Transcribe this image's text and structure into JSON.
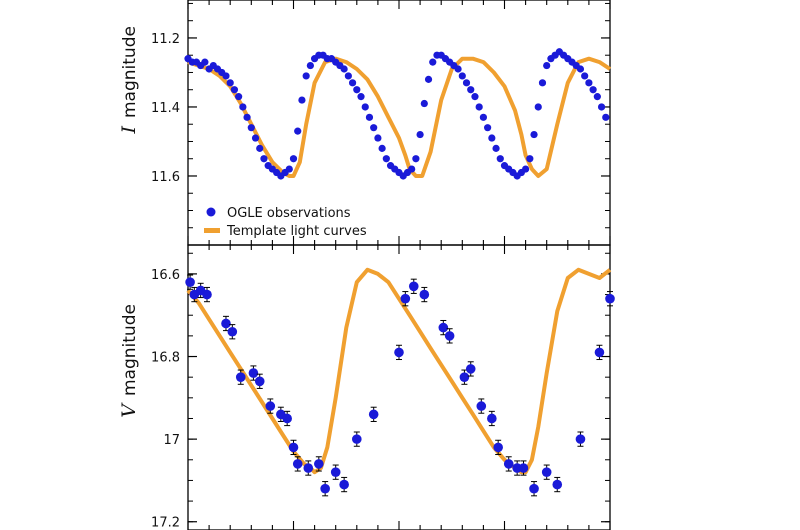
{
  "chart_data": [
    {
      "type": "scatter",
      "panel": "top",
      "ylabel_symbol": "I",
      "ylabel_word": "magnitude",
      "yticks": [
        "11.2",
        "11.4",
        "11.6"
      ],
      "ylim": [
        11.8,
        11.09
      ],
      "y_inverted": true,
      "xlim": [
        0,
        2
      ],
      "legend": {
        "placement": "bottom-left",
        "entries": [
          "OGLE observations",
          "Template light curves"
        ]
      },
      "series": [
        {
          "name": "OGLE observations",
          "color": "#1a1ad8",
          "x": [
            0.0,
            0.02,
            0.04,
            0.06,
            0.08,
            0.1,
            0.12,
            0.14,
            0.16,
            0.18,
            0.2,
            0.22,
            0.24,
            0.26,
            0.28,
            0.3,
            0.32,
            0.34,
            0.36,
            0.38,
            0.4,
            0.42,
            0.44,
            0.46,
            0.48,
            0.5,
            0.52,
            0.54,
            0.56,
            0.58,
            0.6,
            0.62,
            0.64,
            0.66,
            0.68,
            0.7,
            0.72,
            0.74,
            0.76,
            0.78,
            0.8,
            0.82,
            0.84,
            0.86,
            0.88,
            0.9,
            0.92,
            0.94,
            0.96,
            0.98,
            1.0,
            1.02,
            1.04,
            1.06,
            1.08,
            1.1,
            1.12,
            1.14,
            1.16,
            1.18,
            1.2,
            1.22,
            1.24,
            1.26,
            1.28,
            1.3,
            1.32,
            1.34,
            1.36,
            1.38,
            1.4,
            1.42,
            1.44,
            1.46,
            1.48,
            1.5,
            1.52,
            1.54,
            1.56,
            1.58,
            1.6,
            1.62,
            1.64,
            1.66,
            1.68,
            1.7,
            1.72,
            1.74,
            1.76,
            1.78,
            1.8,
            1.82,
            1.84,
            1.86,
            1.88,
            1.9,
            1.92,
            1.94,
            1.96,
            1.98
          ],
          "y": [
            11.26,
            11.27,
            11.27,
            11.28,
            11.27,
            11.29,
            11.28,
            11.29,
            11.3,
            11.31,
            11.33,
            11.35,
            11.37,
            11.4,
            11.43,
            11.46,
            11.49,
            11.52,
            11.55,
            11.57,
            11.58,
            11.59,
            11.6,
            11.59,
            11.58,
            11.55,
            11.47,
            11.38,
            11.31,
            11.28,
            11.26,
            11.25,
            11.25,
            11.26,
            11.26,
            11.27,
            11.28,
            11.29,
            11.31,
            11.33,
            11.35,
            11.37,
            11.4,
            11.43,
            11.46,
            11.49,
            11.52,
            11.55,
            11.57,
            11.58,
            11.59,
            11.6,
            11.59,
            11.58,
            11.55,
            11.48,
            11.39,
            11.32,
            11.27,
            11.25,
            11.25,
            11.26,
            11.27,
            11.28,
            11.29,
            11.31,
            11.33,
            11.35,
            11.37,
            11.4,
            11.43,
            11.46,
            11.49,
            11.52,
            11.55,
            11.57,
            11.58,
            11.59,
            11.6,
            11.59,
            11.58,
            11.55,
            11.48,
            11.4,
            11.33,
            11.28,
            11.26,
            11.25,
            11.24,
            11.25,
            11.26,
            11.27,
            11.28,
            11.29,
            11.31,
            11.33,
            11.35,
            11.37,
            11.4,
            11.43
          ]
        },
        {
          "name": "Template light curves",
          "color": "#f0a030",
          "x": [
            0.0,
            0.05,
            0.1,
            0.15,
            0.2,
            0.25,
            0.3,
            0.35,
            0.4,
            0.45,
            0.48,
            0.5,
            0.53,
            0.56,
            0.6,
            0.65,
            0.7,
            0.75,
            0.8,
            0.85,
            0.9,
            0.95,
            1.0,
            1.03,
            1.05,
            1.08,
            1.11,
            1.15,
            1.2,
            1.25,
            1.3,
            1.35,
            1.4,
            1.45,
            1.5,
            1.55,
            1.58,
            1.6,
            1.63,
            1.66,
            1.7,
            1.75,
            1.8,
            1.85,
            1.9,
            1.95,
            2.0
          ],
          "y": [
            11.27,
            11.28,
            11.29,
            11.31,
            11.34,
            11.39,
            11.45,
            11.51,
            11.56,
            11.59,
            11.6,
            11.6,
            11.56,
            11.45,
            11.33,
            11.27,
            11.26,
            11.27,
            11.29,
            11.32,
            11.37,
            11.43,
            11.49,
            11.54,
            11.58,
            11.6,
            11.6,
            11.53,
            11.38,
            11.29,
            11.26,
            11.26,
            11.27,
            11.3,
            11.34,
            11.41,
            11.48,
            11.54,
            11.58,
            11.6,
            11.58,
            11.45,
            11.33,
            11.27,
            11.26,
            11.27,
            11.29
          ]
        }
      ]
    },
    {
      "type": "scatter",
      "panel": "bottom",
      "ylabel_symbol": "V",
      "ylabel_word": "magnitude",
      "yticks": [
        "16.6",
        "16.8",
        "17",
        "17.2"
      ],
      "ylim": [
        17.22,
        16.53
      ],
      "y_inverted": true,
      "xlim": [
        0,
        2
      ],
      "series": [
        {
          "name": "OGLE observations",
          "color": "#1a1ad8",
          "x": [
            0.01,
            0.03,
            0.06,
            0.09,
            0.18,
            0.21,
            0.25,
            0.31,
            0.34,
            0.39,
            0.44,
            0.47,
            0.5,
            0.52,
            0.57,
            0.62,
            0.65,
            0.7,
            0.74,
            0.8,
            0.88,
            1.0,
            1.03,
            1.07,
            1.12,
            1.21,
            1.24,
            1.31,
            1.34,
            1.39,
            1.44,
            1.47,
            1.52,
            1.56,
            1.59,
            1.64,
            1.7,
            1.75,
            1.86,
            1.95,
            2.0
          ],
          "y": [
            16.62,
            16.65,
            16.64,
            16.65,
            16.72,
            16.74,
            16.85,
            16.84,
            16.86,
            16.92,
            16.94,
            16.95,
            17.02,
            17.06,
            17.07,
            17.06,
            17.12,
            17.08,
            17.11,
            17.0,
            16.94,
            16.79,
            16.66,
            16.63,
            16.65,
            16.73,
            16.75,
            16.85,
            16.83,
            16.92,
            16.95,
            17.02,
            17.06,
            17.07,
            17.07,
            17.12,
            17.08,
            17.11,
            17.0,
            16.79,
            16.66
          ],
          "errors": [
            0.01,
            0.01,
            0.01,
            0.01,
            0.01,
            0.01,
            0.01,
            0.01,
            0.01,
            0.01,
            0.01,
            0.01,
            0.01,
            0.01,
            0.01,
            0.01,
            0.01,
            0.01,
            0.01,
            0.01,
            0.01,
            0.01,
            0.01,
            0.01,
            0.01,
            0.01,
            0.01,
            0.01,
            0.01,
            0.01,
            0.01,
            0.01,
            0.01,
            0.01,
            0.01,
            0.01,
            0.01,
            0.01,
            0.01,
            0.01,
            0.01
          ]
        },
        {
          "name": "Template light curves",
          "color": "#f0a030",
          "x": [
            0.0,
            0.05,
            0.1,
            0.15,
            0.2,
            0.25,
            0.3,
            0.35,
            0.4,
            0.45,
            0.5,
            0.55,
            0.58,
            0.6,
            0.63,
            0.66,
            0.7,
            0.75,
            0.8,
            0.85,
            0.9,
            0.95,
            1.0,
            1.05,
            1.1,
            1.15,
            1.2,
            1.25,
            1.3,
            1.35,
            1.4,
            1.45,
            1.5,
            1.55,
            1.58,
            1.6,
            1.63,
            1.66,
            1.7,
            1.75,
            1.8,
            1.85,
            1.9,
            1.95,
            2.0
          ],
          "y": [
            16.64,
            16.67,
            16.71,
            16.75,
            16.79,
            16.83,
            16.87,
            16.91,
            16.95,
            16.99,
            17.03,
            17.06,
            17.07,
            17.08,
            17.07,
            17.02,
            16.9,
            16.73,
            16.62,
            16.59,
            16.6,
            16.62,
            16.66,
            16.7,
            16.74,
            16.78,
            16.82,
            16.86,
            16.9,
            16.94,
            16.98,
            17.02,
            17.05,
            17.07,
            17.08,
            17.08,
            17.05,
            16.97,
            16.84,
            16.69,
            16.61,
            16.59,
            16.6,
            16.61,
            16.59
          ]
        }
      ]
    }
  ]
}
